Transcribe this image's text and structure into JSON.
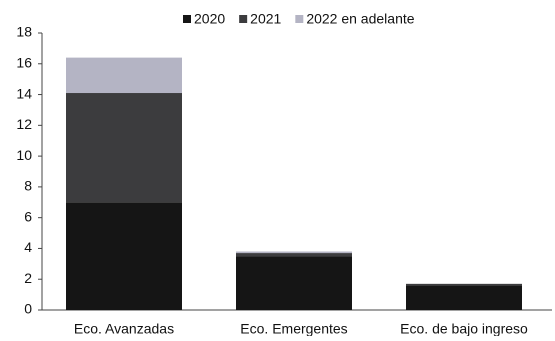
{
  "chart_data": {
    "type": "stacked-bar",
    "categories": [
      "Eco. Avanzadas",
      "Eco. Emergentes",
      "Eco. de bajo ingreso"
    ],
    "series": [
      {
        "name": "2020",
        "color": "#151515",
        "values": [
          7.0,
          3.5,
          1.6
        ]
      },
      {
        "name": "2021",
        "color": "#3c3c3e",
        "values": [
          7.1,
          0.2,
          0.1
        ]
      },
      {
        "name": "2022 en adelante",
        "color": "#b4b4c4",
        "values": [
          2.3,
          0.1,
          0
        ]
      }
    ],
    "ylim": [
      0,
      18
    ],
    "yticks": [
      0,
      2,
      4,
      6,
      8,
      10,
      12,
      14,
      16,
      18
    ],
    "grid": false
  }
}
